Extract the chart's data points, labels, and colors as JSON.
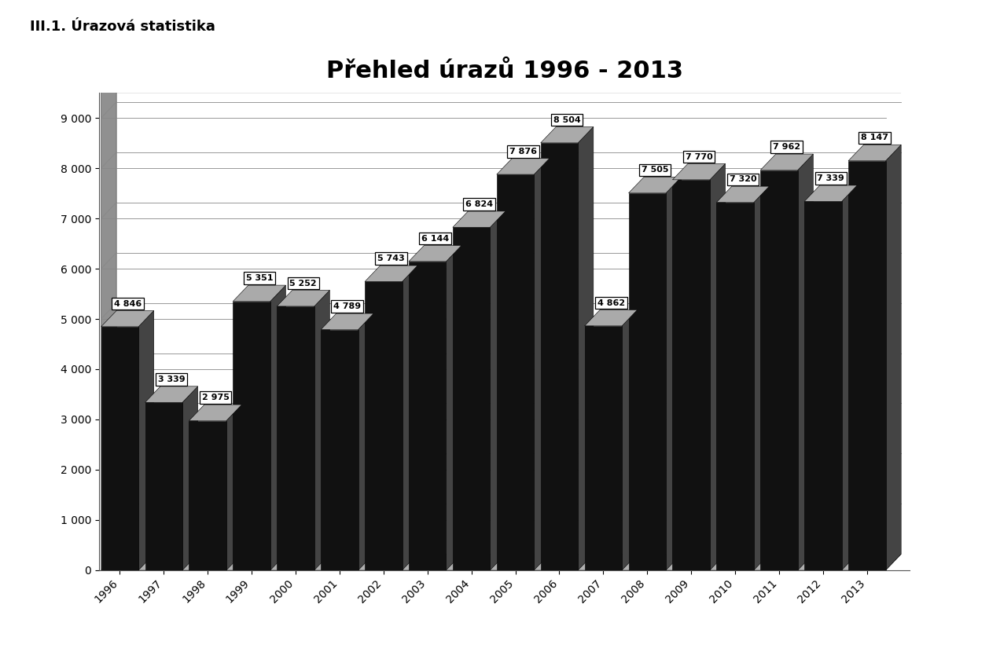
{
  "title": "Přehled úrazů 1996 - 2013",
  "header": "III.1. Úrazová statistika",
  "years": [
    1996,
    1997,
    1998,
    1999,
    2000,
    2001,
    2002,
    2003,
    2004,
    2005,
    2006,
    2007,
    2008,
    2009,
    2010,
    2011,
    2012,
    2013
  ],
  "values": [
    4846,
    3339,
    2975,
    5351,
    5252,
    4789,
    5743,
    6144,
    6824,
    7876,
    8504,
    4862,
    7505,
    7770,
    7320,
    7962,
    7339,
    8147
  ],
  "bar_color": "#111111",
  "side_color": "#444444",
  "top_color": "#aaaaaa",
  "wall_color": "#888888",
  "floor_color": "#aaaaaa",
  "background_color": "#ffffff",
  "grid_color": "#888888",
  "ylim": [
    0,
    9500
  ],
  "yticks": [
    0,
    1000,
    2000,
    3000,
    4000,
    5000,
    6000,
    7000,
    8000,
    9000
  ],
  "ytick_labels": [
    "0",
    "1 000",
    "2 000",
    "3 000",
    "4 000",
    "5 000",
    "6 000",
    "7 000",
    "8 000",
    "9 000"
  ],
  "title_fontsize": 22,
  "header_fontsize": 13,
  "tick_fontsize": 10,
  "label_fontsize": 8,
  "depth_ox": 0.35,
  "depth_oy": 320,
  "bar_width": 0.85
}
